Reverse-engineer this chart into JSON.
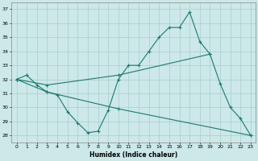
{
  "xlabel": "Humidex (Indice chaleur)",
  "background_color": "#cce8e8",
  "grid_color": "#aacccc",
  "line_color": "#1a7a6e",
  "xlim": [
    -0.5,
    23.5
  ],
  "ylim": [
    27.5,
    37.5
  ],
  "yticks": [
    28,
    29,
    30,
    31,
    32,
    33,
    34,
    35,
    36,
    37
  ],
  "xticks": [
    0,
    1,
    2,
    3,
    4,
    5,
    6,
    7,
    8,
    9,
    10,
    11,
    12,
    13,
    14,
    15,
    16,
    17,
    18,
    19,
    20,
    21,
    22,
    23
  ],
  "series1_x": [
    0,
    1,
    2,
    3,
    4,
    5,
    6,
    7,
    8,
    9,
    10,
    11,
    12,
    13,
    14,
    15,
    16,
    17,
    18,
    19
  ],
  "series1_y": [
    32.0,
    32.3,
    31.6,
    31.1,
    30.9,
    29.7,
    28.9,
    28.2,
    28.3,
    29.8,
    32.0,
    33.0,
    33.0,
    34.0,
    35.0,
    35.7,
    35.7,
    36.8,
    34.7,
    33.8
  ],
  "series2_x": [
    0,
    3,
    10,
    19,
    20,
    21,
    22,
    23
  ],
  "series2_y": [
    32.0,
    31.6,
    32.3,
    33.8,
    31.7,
    30.0,
    29.2,
    28.0
  ],
  "series3_x": [
    0,
    3,
    10,
    23
  ],
  "series3_y": [
    32.0,
    31.1,
    29.9,
    28.0
  ]
}
